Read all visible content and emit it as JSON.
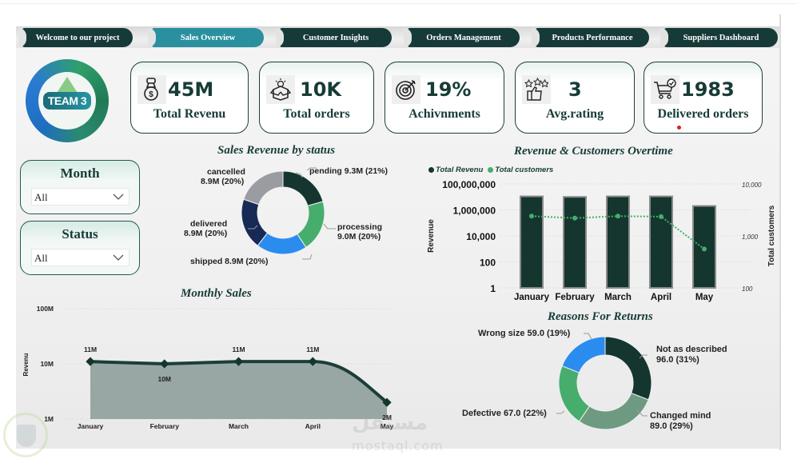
{
  "nav": {
    "tabs": [
      {
        "label": "Welcome to our project",
        "active": false
      },
      {
        "label": "Sales Overview",
        "active": true
      },
      {
        "label": "Customer Insights",
        "active": false
      },
      {
        "label": "Orders Management",
        "active": false
      },
      {
        "label": "Products Performance",
        "active": false
      },
      {
        "label": "Suppliers Dashboard",
        "active": false
      }
    ]
  },
  "logo": {
    "text": "TEAM 3"
  },
  "kpis": [
    {
      "icon": "money-bag-icon",
      "value": "45M",
      "label": "Total Revenu"
    },
    {
      "icon": "open-box-icon",
      "value": "10K",
      "label": "Total orders"
    },
    {
      "icon": "target-icon",
      "value": "19%",
      "label": "Achivnments"
    },
    {
      "icon": "thumbs-up-stars-icon",
      "value": "3",
      "label": "Avg.rating"
    },
    {
      "icon": "cart-check-icon",
      "value": "1983",
      "label": "Delivered orders"
    }
  ],
  "filters": {
    "month": {
      "title": "Month",
      "value": "All"
    },
    "status": {
      "title": "Status",
      "value": "All"
    }
  },
  "colors": {
    "dark_teal": "#163a38",
    "active_tab": "#2a8f9e",
    "green": "#47ad6c",
    "blue": "#2b8cf0",
    "navy": "#172a55",
    "gray": "#9a9ca1",
    "sage": "#6f9a82"
  },
  "chart_data": [
    {
      "id": "sales_revenue_by_status",
      "type": "pie",
      "title": "Sales Revenue by status",
      "donut": true,
      "slices": [
        {
          "name": "pending",
          "value": 9.3,
          "display": "9.3M",
          "percent": 21,
          "color": "#14362f"
        },
        {
          "name": "processing",
          "value": 9.0,
          "display": "9.0M",
          "percent": 20,
          "color": "#47ad6c"
        },
        {
          "name": "shipped",
          "value": 8.9,
          "display": "8.9M",
          "percent": 20,
          "color": "#2b8cf0"
        },
        {
          "name": "delivered",
          "value": 8.9,
          "display": "8.9M",
          "percent": 20,
          "color": "#172a55"
        },
        {
          "name": "cancelled",
          "value": 8.9,
          "display": "8.9M",
          "percent": 20,
          "color": "#9a9ca1"
        }
      ],
      "unit": "M"
    },
    {
      "id": "revenue_customers_overtime",
      "type": "bar",
      "title": "Revenue & Customers Overtime",
      "categories": [
        "January",
        "February",
        "March",
        "April",
        "May"
      ],
      "series": [
        {
          "name": "Total Revenu",
          "kind": "bar",
          "axis": "left",
          "values": [
            11000000,
            10000000,
            11000000,
            11000000,
            2000000
          ],
          "color": "#14362f"
        },
        {
          "name": "Total customers",
          "kind": "line",
          "axis": "right",
          "values": [
            2400,
            2200,
            2400,
            2350,
            560
          ],
          "color": "#47ad6c"
        }
      ],
      "ylabel": "Revenue",
      "y2label": "Total customers",
      "yscale": "log",
      "ylim": [
        1,
        100000000
      ],
      "yticks": [
        "1",
        "100",
        "10,000",
        "1,000,000",
        "100,000,000"
      ],
      "y2lim": [
        100,
        10000
      ],
      "y2ticks": [
        "100",
        "1,000",
        "10,000"
      ],
      "legend": "top-left",
      "grid": true
    },
    {
      "id": "monthly_sales",
      "type": "area",
      "title": "Monthly Sales",
      "categories": [
        "January",
        "February",
        "March",
        "April",
        "May"
      ],
      "values": [
        11000000,
        10000000,
        11000000,
        11000000,
        2000000
      ],
      "data_labels": [
        "11M",
        "10M",
        "11M",
        "11M",
        "2M"
      ],
      "ylabel": "Revenu",
      "yscale": "log",
      "ylim": [
        1000000,
        100000000
      ],
      "yticks": [
        "1M",
        "10M",
        "100M"
      ],
      "grid": true
    },
    {
      "id": "reasons_for_returns",
      "type": "pie",
      "title": "Reasons For Returns",
      "donut": true,
      "slices": [
        {
          "name": "Not as described",
          "value": 96.0,
          "display": "96.0",
          "percent": 31,
          "color": "#14362f"
        },
        {
          "name": "Changed mind",
          "value": 89.0,
          "display": "89.0",
          "percent": 29,
          "color": "#6f9a82"
        },
        {
          "name": "Defective",
          "value": 67.0,
          "display": "67.0",
          "percent": 22,
          "color": "#47ad6c"
        },
        {
          "name": "Wrong size",
          "value": 59.0,
          "display": "59.0",
          "percent": 19,
          "color": "#2b8cf0"
        }
      ]
    }
  ],
  "labels": {
    "status_chart": {
      "pending": "pending 9.3M (21%)",
      "processing_1": "processing",
      "processing_2": "9.0M (20%)",
      "shipped": "shipped 8.9M (20%)",
      "delivered_1": "delivered",
      "delivered_2": "8.9M (20%)",
      "cancelled_1": "cancelled",
      "cancelled_2": "8.9M (20%)"
    },
    "returns_chart": {
      "wrong_size": "Wrong size 59.0 (19%)",
      "not_described_1": "Not as described",
      "not_described_2": "96.0 (31%)",
      "changed_mind_1": "Changed mind",
      "changed_mind_2": "89.0 (29%)",
      "defective": "Defective 67.0 (22%)"
    }
  },
  "watermark": {
    "text_ar": "مستقل",
    "text": "mostaql.com"
  }
}
